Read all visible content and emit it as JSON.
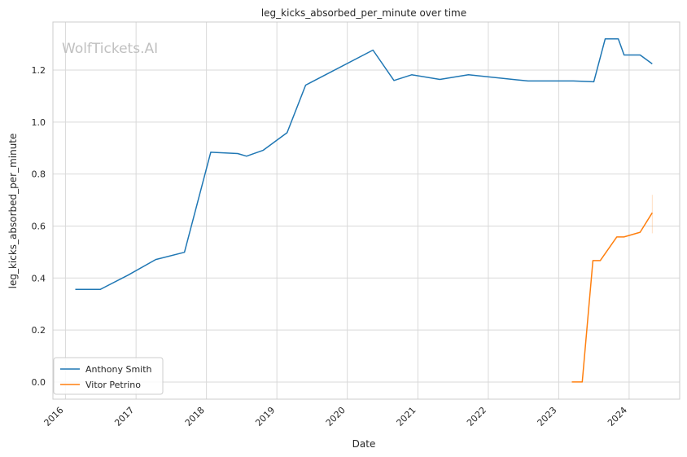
{
  "chart_data": {
    "type": "line",
    "title": "leg_kicks_absorbed_per_minute over time",
    "xlabel": "Date",
    "ylabel": "leg_kicks_absorbed_per_minute",
    "watermark": "WolfTickets.AI",
    "xlim": [
      "2015-10-28",
      "2024-09-19"
    ],
    "ylim": [
      -0.066,
      1.385
    ],
    "x_ticks": [
      "2016",
      "2017",
      "2018",
      "2019",
      "2020",
      "2021",
      "2022",
      "2023",
      "2024"
    ],
    "y_ticks": [
      "0.0",
      "0.2",
      "0.4",
      "0.6",
      "0.8",
      "1.0",
      "1.2"
    ],
    "y_tick_values": [
      0.0,
      0.2,
      0.4,
      0.6,
      0.8,
      1.0,
      1.2
    ],
    "grid": true,
    "legend_position": "lower-left",
    "series": [
      {
        "name": "Anthony Smith",
        "color": "#1f77b4",
        "x": [
          "2016-02-21",
          "2016-06-29",
          "2016-11-20",
          "2017-04-13",
          "2017-09-09",
          "2018-01-23",
          "2018-06-12",
          "2018-07-28",
          "2018-10-21",
          "2019-02-23",
          "2019-05-30",
          "2020-05-13",
          "2020-08-30",
          "2020-11-30",
          "2021-04-25",
          "2021-09-20",
          "2022-07-26",
          "2023-03-18",
          "2023-07-02",
          "2023-08-30",
          "2023-11-06",
          "2023-12-06",
          "2024-02-27",
          "2024-04-30"
        ],
        "y": [
          0.356,
          0.356,
          0.411,
          0.471,
          0.499,
          0.884,
          0.879,
          0.869,
          0.891,
          0.959,
          1.142,
          1.277,
          1.16,
          1.182,
          1.164,
          1.182,
          1.158,
          1.158,
          1.155,
          1.32,
          1.32,
          1.258,
          1.258,
          1.224
        ]
      },
      {
        "name": "Vitor Petrino",
        "color": "#ff7f0e",
        "x": [
          "2023-03-10",
          "2023-05-03",
          "2023-06-27",
          "2023-08-04",
          "2023-10-29",
          "2023-12-05",
          "2024-02-27",
          "2024-04-30"
        ],
        "y": [
          0.0,
          0.0,
          0.467,
          0.467,
          0.558,
          0.558,
          0.576,
          0.651
        ],
        "error_band": {
          "x": "2024-04-30",
          "low": 0.572,
          "high": 0.72
        }
      }
    ]
  }
}
